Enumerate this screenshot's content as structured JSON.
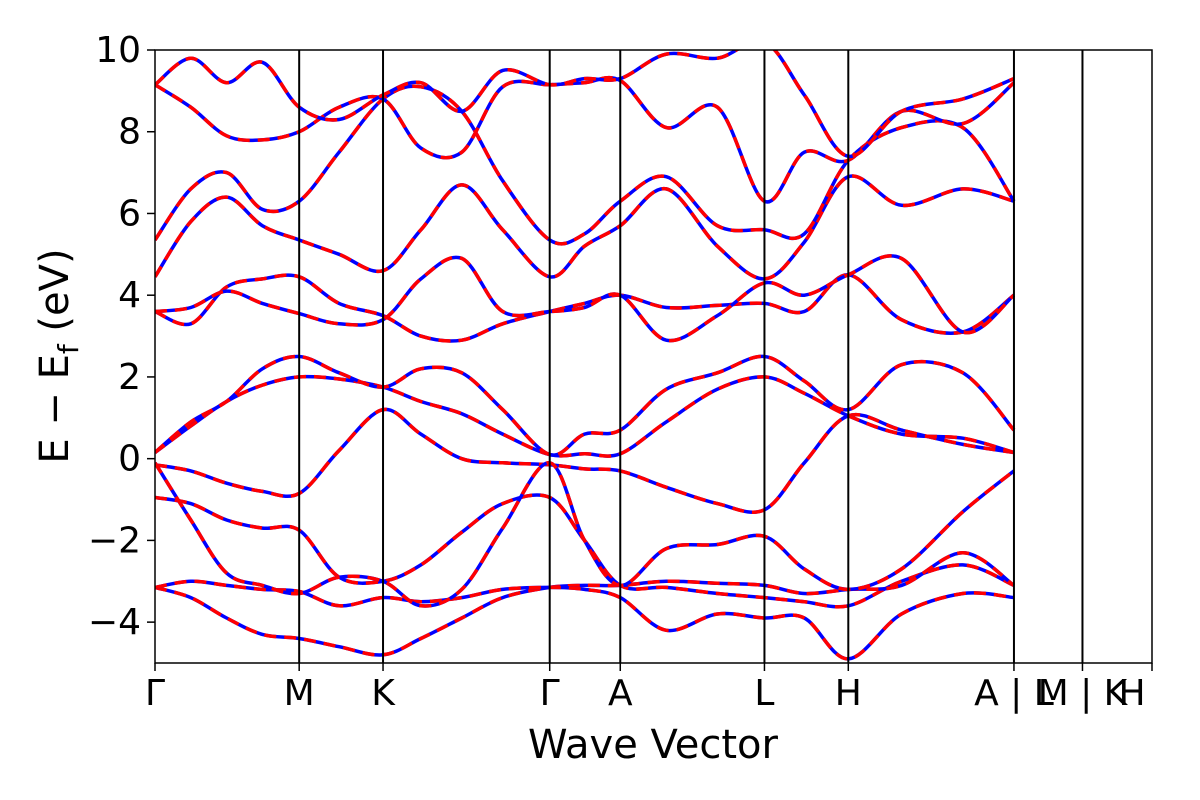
{
  "chart_data": {
    "type": "line",
    "title": "",
    "xlabel": "Wave Vector",
    "ylabel": "E − E",
    "ylabel_subscript": "f",
    "ylabel_unit": "(eV)",
    "ylim": [
      -5,
      10
    ],
    "yticks": [
      -4,
      -2,
      0,
      2,
      4,
      6,
      8,
      10
    ],
    "ytick_labels": [
      "−4",
      "−2",
      "0",
      "2",
      "4",
      "6",
      "8",
      "10"
    ],
    "xlim": [
      0,
      7.08
    ],
    "kpoint_ticks": [
      {
        "x": 0.0,
        "label": "Γ"
      },
      {
        "x": 1.41,
        "label": "M"
      },
      {
        "x": 2.23,
        "label": "K"
      },
      {
        "x": 3.86,
        "label": "Γ"
      },
      {
        "x": 4.55,
        "label": "A"
      },
      {
        "x": 5.96,
        "label": "L"
      },
      {
        "x": 6.78,
        "label": "H"
      },
      {
        "x": 8.4,
        "label": "A | L"
      },
      {
        "x": 9.07,
        "label": "M | K"
      },
      {
        "x": 9.75,
        "label": "H"
      }
    ],
    "segment_boundaries": [
      0.0,
      1.41,
      2.23,
      3.86,
      4.55,
      5.96,
      6.78,
      8.4,
      9.07,
      9.75
    ],
    "series_styles": [
      {
        "color": "#0000ff",
        "dash": "solid",
        "width": 3.5
      },
      {
        "color": "#ff0000",
        "dash": "12 8",
        "width": 3.5
      }
    ],
    "bands": [
      {
        "x": [
          0,
          0.35,
          0.7,
          1.05,
          1.41,
          1.8,
          2.23,
          2.6,
          3.0,
          3.4,
          3.86,
          4.2,
          4.55,
          5.0,
          5.5,
          5.96,
          6.35,
          6.78,
          7.3,
          7.9,
          8.4
        ],
        "y": [
          -0.95,
          -1.1,
          -1.5,
          -1.7,
          -1.75,
          -2.9,
          -3.0,
          -2.6,
          -1.8,
          -1.1,
          -0.95,
          -2.0,
          -3.1,
          -3.15,
          -3.3,
          -3.4,
          -3.5,
          -3.6,
          -3.0,
          -2.6,
          -3.1
        ]
      },
      {
        "x": [
          0,
          0.35,
          0.7,
          1.05,
          1.41,
          1.8,
          2.23,
          2.6,
          3.0,
          3.4,
          3.86,
          4.2,
          4.55,
          5.0,
          5.5,
          5.96,
          6.35,
          6.78,
          7.3,
          7.9,
          8.4
        ],
        "y": [
          -0.15,
          -0.3,
          -0.6,
          -0.8,
          -0.85,
          0.2,
          1.2,
          0.6,
          0.0,
          -0.1,
          -0.15,
          -0.25,
          -0.3,
          -0.7,
          -1.1,
          -1.25,
          -0.1,
          1.05,
          0.7,
          0.35,
          0.15
        ]
      },
      {
        "x": [
          0,
          0.35,
          0.7,
          1.05,
          1.41,
          1.8,
          2.23,
          2.6,
          3.0,
          3.4,
          3.86,
          4.2,
          4.55,
          5.0,
          5.5,
          5.96,
          6.35,
          6.78,
          7.3,
          7.9,
          8.4
        ],
        "y": [
          0.15,
          0.8,
          1.4,
          1.8,
          2.0,
          1.95,
          1.75,
          1.4,
          1.1,
          0.6,
          0.1,
          0.12,
          0.12,
          0.9,
          1.7,
          2.0,
          1.6,
          1.05,
          0.6,
          0.5,
          0.15
        ]
      },
      {
        "x": [
          0,
          0.35,
          0.7,
          1.05,
          1.41,
          1.8,
          2.23,
          2.6,
          3.0,
          3.4,
          3.86,
          4.2,
          4.55,
          5.0,
          5.5,
          5.96,
          6.35,
          6.78,
          7.3,
          7.9,
          8.4
        ],
        "y": [
          0.15,
          0.9,
          1.4,
          2.2,
          2.5,
          2.1,
          1.75,
          2.2,
          2.1,
          1.2,
          0.1,
          0.6,
          0.7,
          1.7,
          2.1,
          2.5,
          1.9,
          1.2,
          2.3,
          2.1,
          0.7
        ]
      },
      {
        "x": [
          0,
          0.35,
          0.7,
          1.05,
          1.41,
          1.8,
          2.23,
          2.6,
          3.0,
          3.4,
          3.86,
          4.2,
          4.55,
          5.0,
          5.5,
          5.96,
          6.35,
          6.78,
          7.3,
          7.9,
          8.4
        ],
        "y": [
          3.6,
          3.3,
          4.2,
          4.4,
          4.45,
          3.8,
          3.5,
          3.0,
          2.9,
          3.3,
          3.6,
          3.8,
          4.0,
          3.7,
          3.75,
          3.8,
          3.6,
          4.5,
          3.4,
          3.1,
          4.0
        ]
      },
      {
        "x": [
          0,
          0.35,
          0.7,
          1.05,
          1.41,
          1.8,
          2.23,
          2.6,
          3.0,
          3.4,
          3.86,
          4.2,
          4.55,
          5.0,
          5.5,
          5.96,
          6.35,
          6.78,
          7.3,
          7.9,
          8.4
        ],
        "y": [
          3.6,
          3.7,
          4.1,
          3.8,
          3.55,
          3.3,
          3.4,
          4.4,
          4.9,
          3.6,
          3.6,
          3.7,
          4.0,
          2.9,
          3.5,
          4.3,
          4.0,
          4.5,
          4.9,
          3.1,
          4.0
        ]
      },
      {
        "x": [
          0,
          0.35,
          0.7,
          1.05,
          1.41,
          1.8,
          2.23,
          2.6,
          3.0,
          3.4,
          3.86,
          4.2,
          4.55,
          5.0,
          5.5,
          5.96,
          6.35,
          6.78,
          7.3,
          7.9,
          8.4
        ],
        "y": [
          4.45,
          5.8,
          6.4,
          5.7,
          5.35,
          5.0,
          4.6,
          5.6,
          6.7,
          5.6,
          4.45,
          5.2,
          5.7,
          6.6,
          5.2,
          4.4,
          5.3,
          6.9,
          6.2,
          6.6,
          6.3
        ]
      },
      {
        "x": [
          0,
          0.35,
          0.7,
          1.05,
          1.41,
          1.8,
          2.23,
          2.6,
          3.0,
          3.4,
          3.86,
          4.2,
          4.55,
          5.0,
          5.5,
          5.96,
          6.35,
          6.78,
          7.3,
          7.9,
          8.4
        ],
        "y": [
          5.35,
          6.6,
          7.0,
          6.1,
          6.3,
          7.5,
          8.8,
          9.1,
          8.5,
          6.8,
          5.35,
          5.5,
          6.3,
          6.9,
          5.7,
          5.6,
          5.5,
          7.3,
          8.1,
          8.1,
          6.3
        ]
      },
      {
        "x": [
          0,
          0.35,
          0.7,
          1.05,
          1.41,
          1.8,
          2.23,
          2.6,
          3.0,
          3.4,
          3.86,
          4.2,
          4.55,
          5.0,
          5.5,
          5.96,
          6.35,
          6.78,
          7.3,
          7.9,
          8.4
        ],
        "y": [
          9.15,
          8.6,
          7.9,
          7.8,
          8.0,
          8.6,
          8.8,
          7.6,
          7.5,
          9.1,
          9.15,
          9.2,
          9.25,
          8.1,
          8.6,
          6.3,
          7.5,
          7.3,
          8.5,
          8.2,
          9.2
        ]
      },
      {
        "x": [
          0,
          0.35,
          0.7,
          1.05,
          1.41,
          1.8,
          2.23,
          2.6,
          3.0,
          3.4,
          3.86,
          4.2,
          4.55,
          5.0,
          5.5,
          5.96,
          6.35,
          6.78,
          7.3,
          7.9,
          8.4
        ],
        "y": [
          9.15,
          9.8,
          9.2,
          9.7,
          8.6,
          8.3,
          8.9,
          9.2,
          8.5,
          9.5,
          9.15,
          9.3,
          9.3,
          9.9,
          9.8,
          10.2,
          8.9,
          7.4,
          8.5,
          8.8,
          9.3
        ]
      },
      {
        "x": [
          0,
          0.35,
          0.7,
          1.05,
          1.41,
          1.8,
          2.23,
          2.6,
          3.0,
          3.4,
          3.86,
          4.2,
          4.55,
          5.0,
          5.5,
          5.96,
          6.35,
          6.78,
          7.3,
          7.9,
          8.4
        ],
        "y": [
          -3.15,
          -3.4,
          -3.9,
          -4.3,
          -4.4,
          -4.6,
          -4.8,
          -4.4,
          -3.9,
          -3.4,
          -3.15,
          -3.1,
          -3.1,
          -3.0,
          -3.05,
          -3.1,
          -3.3,
          -3.2,
          -3.1,
          -2.3,
          -3.1
        ]
      },
      {
        "x": [
          0,
          0.35,
          0.7,
          1.05,
          1.41,
          1.8,
          2.23,
          2.6,
          3.0,
          3.4,
          3.86,
          4.2,
          4.55,
          5.0,
          5.5,
          5.96,
          6.35,
          6.78,
          7.3,
          7.9,
          8.4
        ],
        "y": [
          -3.15,
          -3.0,
          -3.1,
          -3.2,
          -3.25,
          -3.6,
          -3.4,
          -3.5,
          -3.4,
          -3.2,
          -3.15,
          -3.2,
          -3.4,
          -4.2,
          -3.8,
          -3.9,
          -3.9,
          -4.9,
          -3.8,
          -3.3,
          -3.4
        ]
      },
      {
        "x": [
          0,
          0.35,
          0.7,
          1.05,
          1.41,
          1.8,
          2.23,
          2.6,
          3.0,
          3.4,
          3.86,
          4.2,
          4.55,
          5.0,
          5.5,
          5.96,
          6.35,
          6.78,
          7.3,
          7.9,
          8.4
        ],
        "y": [
          -0.1,
          -1.5,
          -2.8,
          -3.1,
          -3.3,
          -2.9,
          -3.0,
          -3.6,
          -3.2,
          -1.7,
          -0.1,
          -2.0,
          -3.1,
          -2.2,
          -2.1,
          -1.9,
          -2.7,
          -3.2,
          -2.7,
          -1.3,
          -0.3
        ]
      }
    ]
  }
}
